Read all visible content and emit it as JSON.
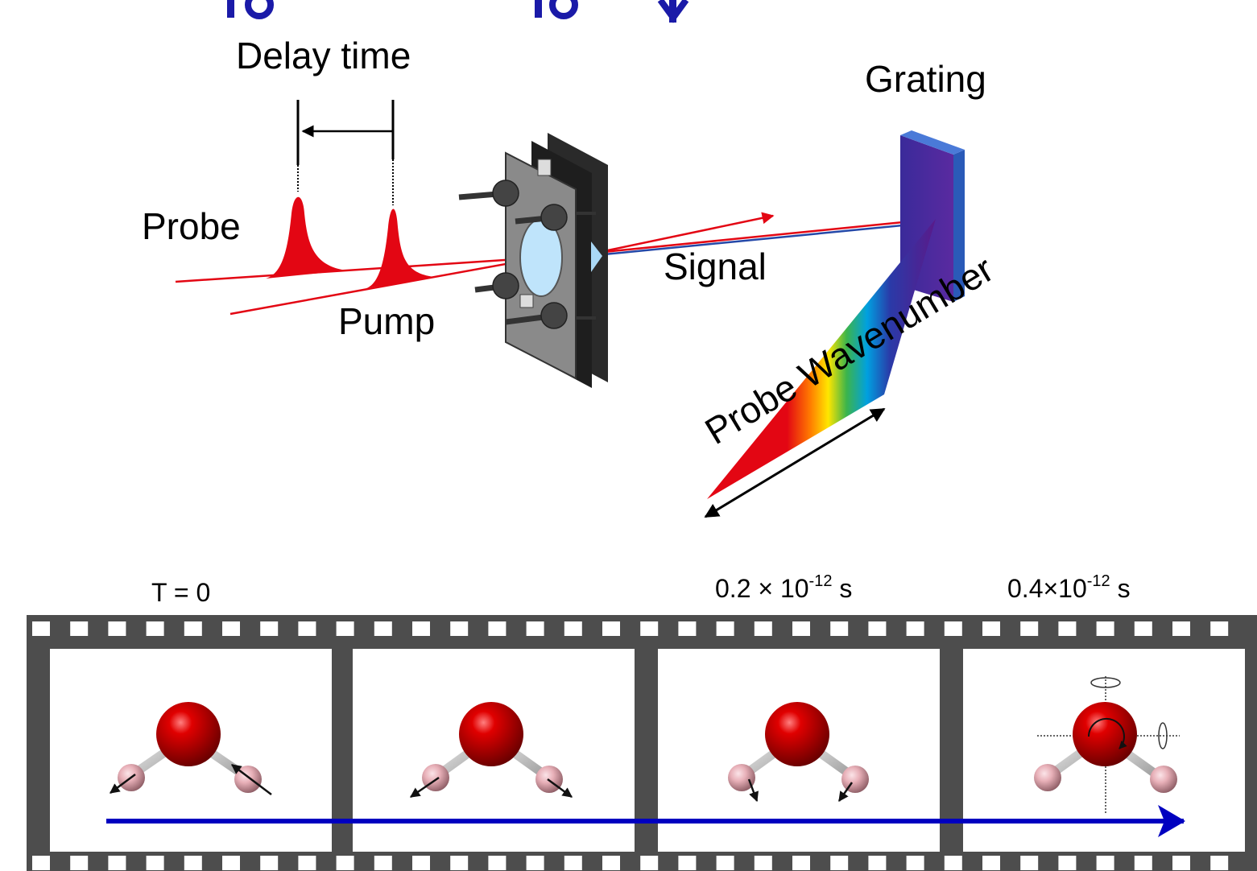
{
  "colors": {
    "title": "#1a1aa8",
    "beam": "#e30613",
    "signal_beam": "#2448a8",
    "film": "#4d4d4d",
    "arrow": "#0000c0",
    "oxygen": "#e00000",
    "hydrogen": "#e8b0b8"
  },
  "diagram": {
    "delay_label": "Delay time",
    "grating_label": "Grating",
    "probe_label": "Probe",
    "pump_label": "Pump",
    "signal_label": "Signal",
    "wavenumber_label": "Probe Wavenumber"
  },
  "timeline": {
    "t0": "T = 0",
    "t2": {
      "prefix": "0.2 × 10",
      "exp": "-12",
      "unit": " s"
    },
    "t3": {
      "prefix": "0.4×10",
      "exp": "-12",
      "unit": " s"
    }
  },
  "frames": [
    {
      "name": "frame-1",
      "motion": "antisymmetric-stretch"
    },
    {
      "name": "frame-2",
      "motion": "symmetric-stretch"
    },
    {
      "name": "frame-3",
      "motion": "bend"
    },
    {
      "name": "frame-4",
      "motion": "rotation"
    }
  ]
}
